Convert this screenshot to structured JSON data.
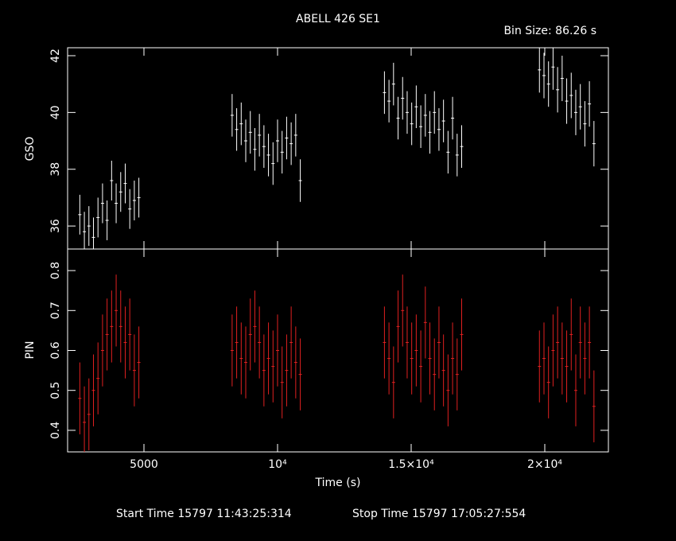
{
  "chart_data": [
    {
      "type": "errorbar",
      "title": "ABELL 426 SE1",
      "subtitle": "Bin Size: 86.26 s",
      "y_label": "GSO",
      "color": "#ffffff",
      "x": [
        2600,
        2770,
        2940,
        3110,
        3280,
        3450,
        3620,
        3790,
        3960,
        4130,
        4300,
        4470,
        4640,
        4810,
        8300,
        8470,
        8640,
        8810,
        8980,
        9150,
        9320,
        9490,
        9660,
        9830,
        10000,
        10170,
        10340,
        10510,
        10680,
        10850,
        14000,
        14170,
        14340,
        14510,
        14680,
        14850,
        15020,
        15190,
        15360,
        15530,
        15700,
        15870,
        16040,
        16210,
        16380,
        16550,
        16720,
        16890,
        19800,
        19970,
        20140,
        20310,
        20480,
        20650,
        20820,
        20990,
        21160,
        21330,
        21500,
        21670,
        21840
      ],
      "values": [
        36.4,
        35.8,
        36.0,
        35.6,
        36.3,
        36.8,
        36.2,
        37.6,
        36.8,
        37.2,
        37.5,
        36.6,
        36.9,
        37.0,
        39.9,
        39.4,
        39.6,
        39.0,
        39.3,
        38.7,
        39.2,
        38.8,
        38.5,
        38.2,
        39.0,
        38.6,
        39.1,
        38.9,
        39.2,
        37.6,
        40.7,
        40.4,
        41.0,
        39.8,
        40.5,
        40.0,
        39.6,
        40.2,
        39.5,
        39.9,
        39.3,
        40.0,
        39.4,
        39.7,
        38.6,
        39.8,
        38.5,
        38.8,
        41.5,
        41.3,
        41.0,
        41.6,
        40.8,
        41.2,
        40.4,
        40.6,
        40.0,
        40.2,
        39.6,
        40.3,
        38.9
      ],
      "errors": [
        0.7,
        0.7,
        0.7,
        0.7,
        0.7,
        0.7,
        0.7,
        0.7,
        0.7,
        0.7,
        0.7,
        0.7,
        0.7,
        0.7,
        0.75,
        0.75,
        0.75,
        0.75,
        0.75,
        0.75,
        0.75,
        0.75,
        0.75,
        0.75,
        0.75,
        0.75,
        0.75,
        0.75,
        0.75,
        0.75,
        0.75,
        0.75,
        0.75,
        0.75,
        0.75,
        0.75,
        0.75,
        0.75,
        0.75,
        0.75,
        0.75,
        0.75,
        0.75,
        0.75,
        0.75,
        0.75,
        0.75,
        0.75,
        0.8,
        0.8,
        0.8,
        0.8,
        0.8,
        0.8,
        0.8,
        0.8,
        0.8,
        0.8,
        0.8,
        0.8,
        0.8
      ],
      "xlim": [
        2143,
        22381
      ],
      "ylim": [
        35.19,
        42.28
      ],
      "yticks": [
        36,
        38,
        40,
        42
      ]
    },
    {
      "type": "errorbar",
      "y_label": "PIN",
      "x_label": "Time (s)",
      "color": "#e02020",
      "footer": [
        "Start Time 15797 11:43:25:314",
        "Stop Time 15797 17:05:27:554"
      ],
      "x": [
        2600,
        2770,
        2940,
        3110,
        3280,
        3450,
        3620,
        3790,
        3960,
        4130,
        4300,
        4470,
        4640,
        4810,
        8300,
        8470,
        8640,
        8810,
        8980,
        9150,
        9320,
        9490,
        9660,
        9830,
        10000,
        10170,
        10340,
        10510,
        10680,
        10850,
        14000,
        14170,
        14340,
        14510,
        14680,
        14850,
        15020,
        15190,
        15360,
        15530,
        15700,
        15870,
        16040,
        16210,
        16380,
        16550,
        16720,
        16890,
        19800,
        19970,
        20140,
        20310,
        20480,
        20650,
        20820,
        20990,
        21160,
        21330,
        21500,
        21670,
        21840
      ],
      "values": [
        0.48,
        0.42,
        0.44,
        0.5,
        0.53,
        0.6,
        0.64,
        0.66,
        0.7,
        0.66,
        0.62,
        0.64,
        0.55,
        0.57,
        0.6,
        0.62,
        0.58,
        0.57,
        0.64,
        0.66,
        0.62,
        0.55,
        0.58,
        0.56,
        0.6,
        0.52,
        0.55,
        0.62,
        0.57,
        0.54,
        0.62,
        0.58,
        0.52,
        0.66,
        0.7,
        0.62,
        0.58,
        0.6,
        0.56,
        0.67,
        0.58,
        0.54,
        0.62,
        0.55,
        0.5,
        0.58,
        0.54,
        0.64,
        0.56,
        0.58,
        0.52,
        0.6,
        0.62,
        0.58,
        0.56,
        0.64,
        0.5,
        0.62,
        0.58,
        0.62,
        0.46
      ],
      "errors": [
        0.09,
        0.09,
        0.09,
        0.09,
        0.09,
        0.09,
        0.09,
        0.09,
        0.09,
        0.09,
        0.09,
        0.09,
        0.09,
        0.09,
        0.09,
        0.09,
        0.09,
        0.09,
        0.09,
        0.09,
        0.09,
        0.09,
        0.09,
        0.09,
        0.09,
        0.09,
        0.09,
        0.09,
        0.09,
        0.09,
        0.09,
        0.09,
        0.09,
        0.09,
        0.09,
        0.09,
        0.09,
        0.09,
        0.09,
        0.09,
        0.09,
        0.09,
        0.09,
        0.09,
        0.09,
        0.09,
        0.09,
        0.09,
        0.09,
        0.09,
        0.09,
        0.09,
        0.09,
        0.09,
        0.09,
        0.09,
        0.09,
        0.09,
        0.09,
        0.09,
        0.09
      ],
      "xlim": [
        2143,
        22381
      ],
      "ylim": [
        0.346,
        0.854
      ],
      "yticks": [
        0.4,
        0.5,
        0.6,
        0.7,
        0.8
      ],
      "xticks": [
        5000,
        {
          "value": 10000,
          "label": "10⁴"
        },
        {
          "value": 15000,
          "label": "1.5×10⁴"
        },
        {
          "value": 20000,
          "label": "2×10⁴"
        }
      ]
    }
  ]
}
